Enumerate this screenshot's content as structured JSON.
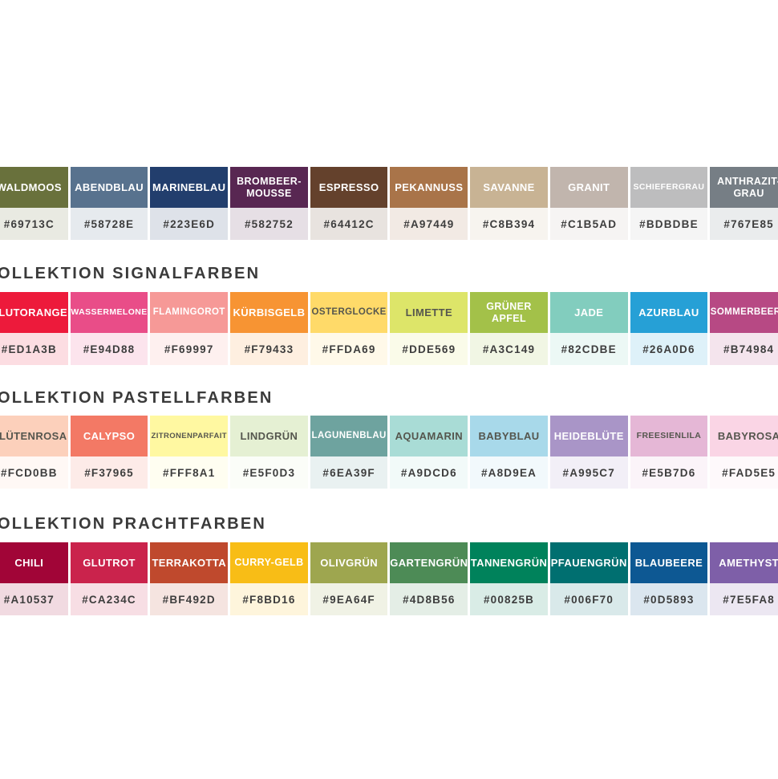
{
  "colors": {
    "background": "#FFFFFF",
    "heading_text": "#3A3A3A",
    "label_light": "#FFFFFF",
    "label_dark": "#55564E",
    "code_text": "#3D3D3D"
  },
  "sections": [
    {
      "heading": "",
      "swatches": [
        {
          "name": "WALDMOOS",
          "hex": "#69713C",
          "label_style": "light"
        },
        {
          "name": "ABENDBLAU",
          "hex": "#58728E",
          "label_style": "light"
        },
        {
          "name": "MARINEBLAU",
          "hex": "#223E6D",
          "label_style": "light"
        },
        {
          "name": "BROMBEER-MOUSSE",
          "hex": "#582752",
          "label_style": "light"
        },
        {
          "name": "ESPRESSO",
          "hex": "#64412C",
          "label_style": "light"
        },
        {
          "name": "PEKANNUSS",
          "hex": "#A97449",
          "label_style": "light"
        },
        {
          "name": "SAVANNE",
          "hex": "#C8B394",
          "label_style": "light"
        },
        {
          "name": "GRANIT",
          "hex": "#C1B5AD",
          "label_style": "light"
        },
        {
          "name": "SCHIEFERGRAU",
          "hex": "#BDBDBE",
          "label_style": "light"
        },
        {
          "name": "ANTHRAZIT-GRAU",
          "hex": "#767E85",
          "label_style": "light"
        }
      ]
    },
    {
      "heading": "OLLEKTION SIGNALFARBEN",
      "swatches": [
        {
          "name": "BLUTORANGE",
          "hex": "#ED1A3B",
          "label_style": "light"
        },
        {
          "name": "WASSERMELONE",
          "hex": "#E94D88",
          "label_style": "light"
        },
        {
          "name": "FLAMINGOROT",
          "hex": "#F69997",
          "label_style": "light"
        },
        {
          "name": "KÜRBISGELB",
          "hex": "#F79433",
          "label_style": "light"
        },
        {
          "name": "OSTERGLOCKE",
          "hex": "#FFDA69",
          "label_style": "dark"
        },
        {
          "name": "LIMETTE",
          "hex": "#DDE569",
          "label_style": "dark"
        },
        {
          "name": "GRÜNER APFEL",
          "hex": "#A3C149",
          "label_style": "light"
        },
        {
          "name": "JADE",
          "hex": "#82CDBE",
          "label_style": "light"
        },
        {
          "name": "AZURBLAU",
          "hex": "#26A0D6",
          "label_style": "light"
        },
        {
          "name": "SOMMERBEERE",
          "hex": "#B74984",
          "label_style": "light"
        }
      ]
    },
    {
      "heading": "OLLEKTION PASTELLFARBEN",
      "swatches": [
        {
          "name": "BLÜTENROSA",
          "hex": "#FCD0BB",
          "label_style": "dark"
        },
        {
          "name": "CALYPSO",
          "hex": "#F37965",
          "label_style": "light"
        },
        {
          "name": "ZITRONENPARFAIT",
          "hex": "#FFF8A1",
          "label_style": "dark"
        },
        {
          "name": "LINDGRÜN",
          "hex": "#E5F0D3",
          "label_style": "dark"
        },
        {
          "name": "LAGUNENBLAU",
          "hex": "#6EA39F",
          "label_style": "light"
        },
        {
          "name": "AQUAMARIN",
          "hex": "#A9DCD6",
          "label_style": "dark"
        },
        {
          "name": "BABYBLAU",
          "hex": "#A8D9EA",
          "label_style": "dark"
        },
        {
          "name": "HEIDEBLÜTE",
          "hex": "#A995C7",
          "label_style": "light"
        },
        {
          "name": "FREESIENLILA",
          "hex": "#E5B7D6",
          "label_style": "dark"
        },
        {
          "name": "BABYROSA",
          "hex": "#FAD5E5",
          "label_style": "dark"
        }
      ]
    },
    {
      "heading": "OLLEKTION PRACHTFARBEN",
      "swatches": [
        {
          "name": "CHILI",
          "hex": "#A10537",
          "label_style": "light"
        },
        {
          "name": "GLUTROT",
          "hex": "#CA234C",
          "label_style": "light"
        },
        {
          "name": "TERRAKOTTA",
          "hex": "#BF492D",
          "label_style": "light"
        },
        {
          "name": "CURRY-GELB",
          "hex": "#F8BD16",
          "label_style": "light"
        },
        {
          "name": "OLIVGRÜN",
          "hex": "#9EA64F",
          "label_style": "light"
        },
        {
          "name": "GARTENGRÜN",
          "hex": "#4D8B56",
          "label_style": "light"
        },
        {
          "name": "TANNENGRÜN",
          "hex": "#00825B",
          "label_style": "light"
        },
        {
          "name": "PFAUENGRÜN",
          "hex": "#006F70",
          "label_style": "light"
        },
        {
          "name": "BLAUBEERE",
          "hex": "#0D5893",
          "label_style": "light"
        },
        {
          "name": "AMETHYST",
          "hex": "#7E5FA8",
          "label_style": "light"
        }
      ]
    }
  ]
}
